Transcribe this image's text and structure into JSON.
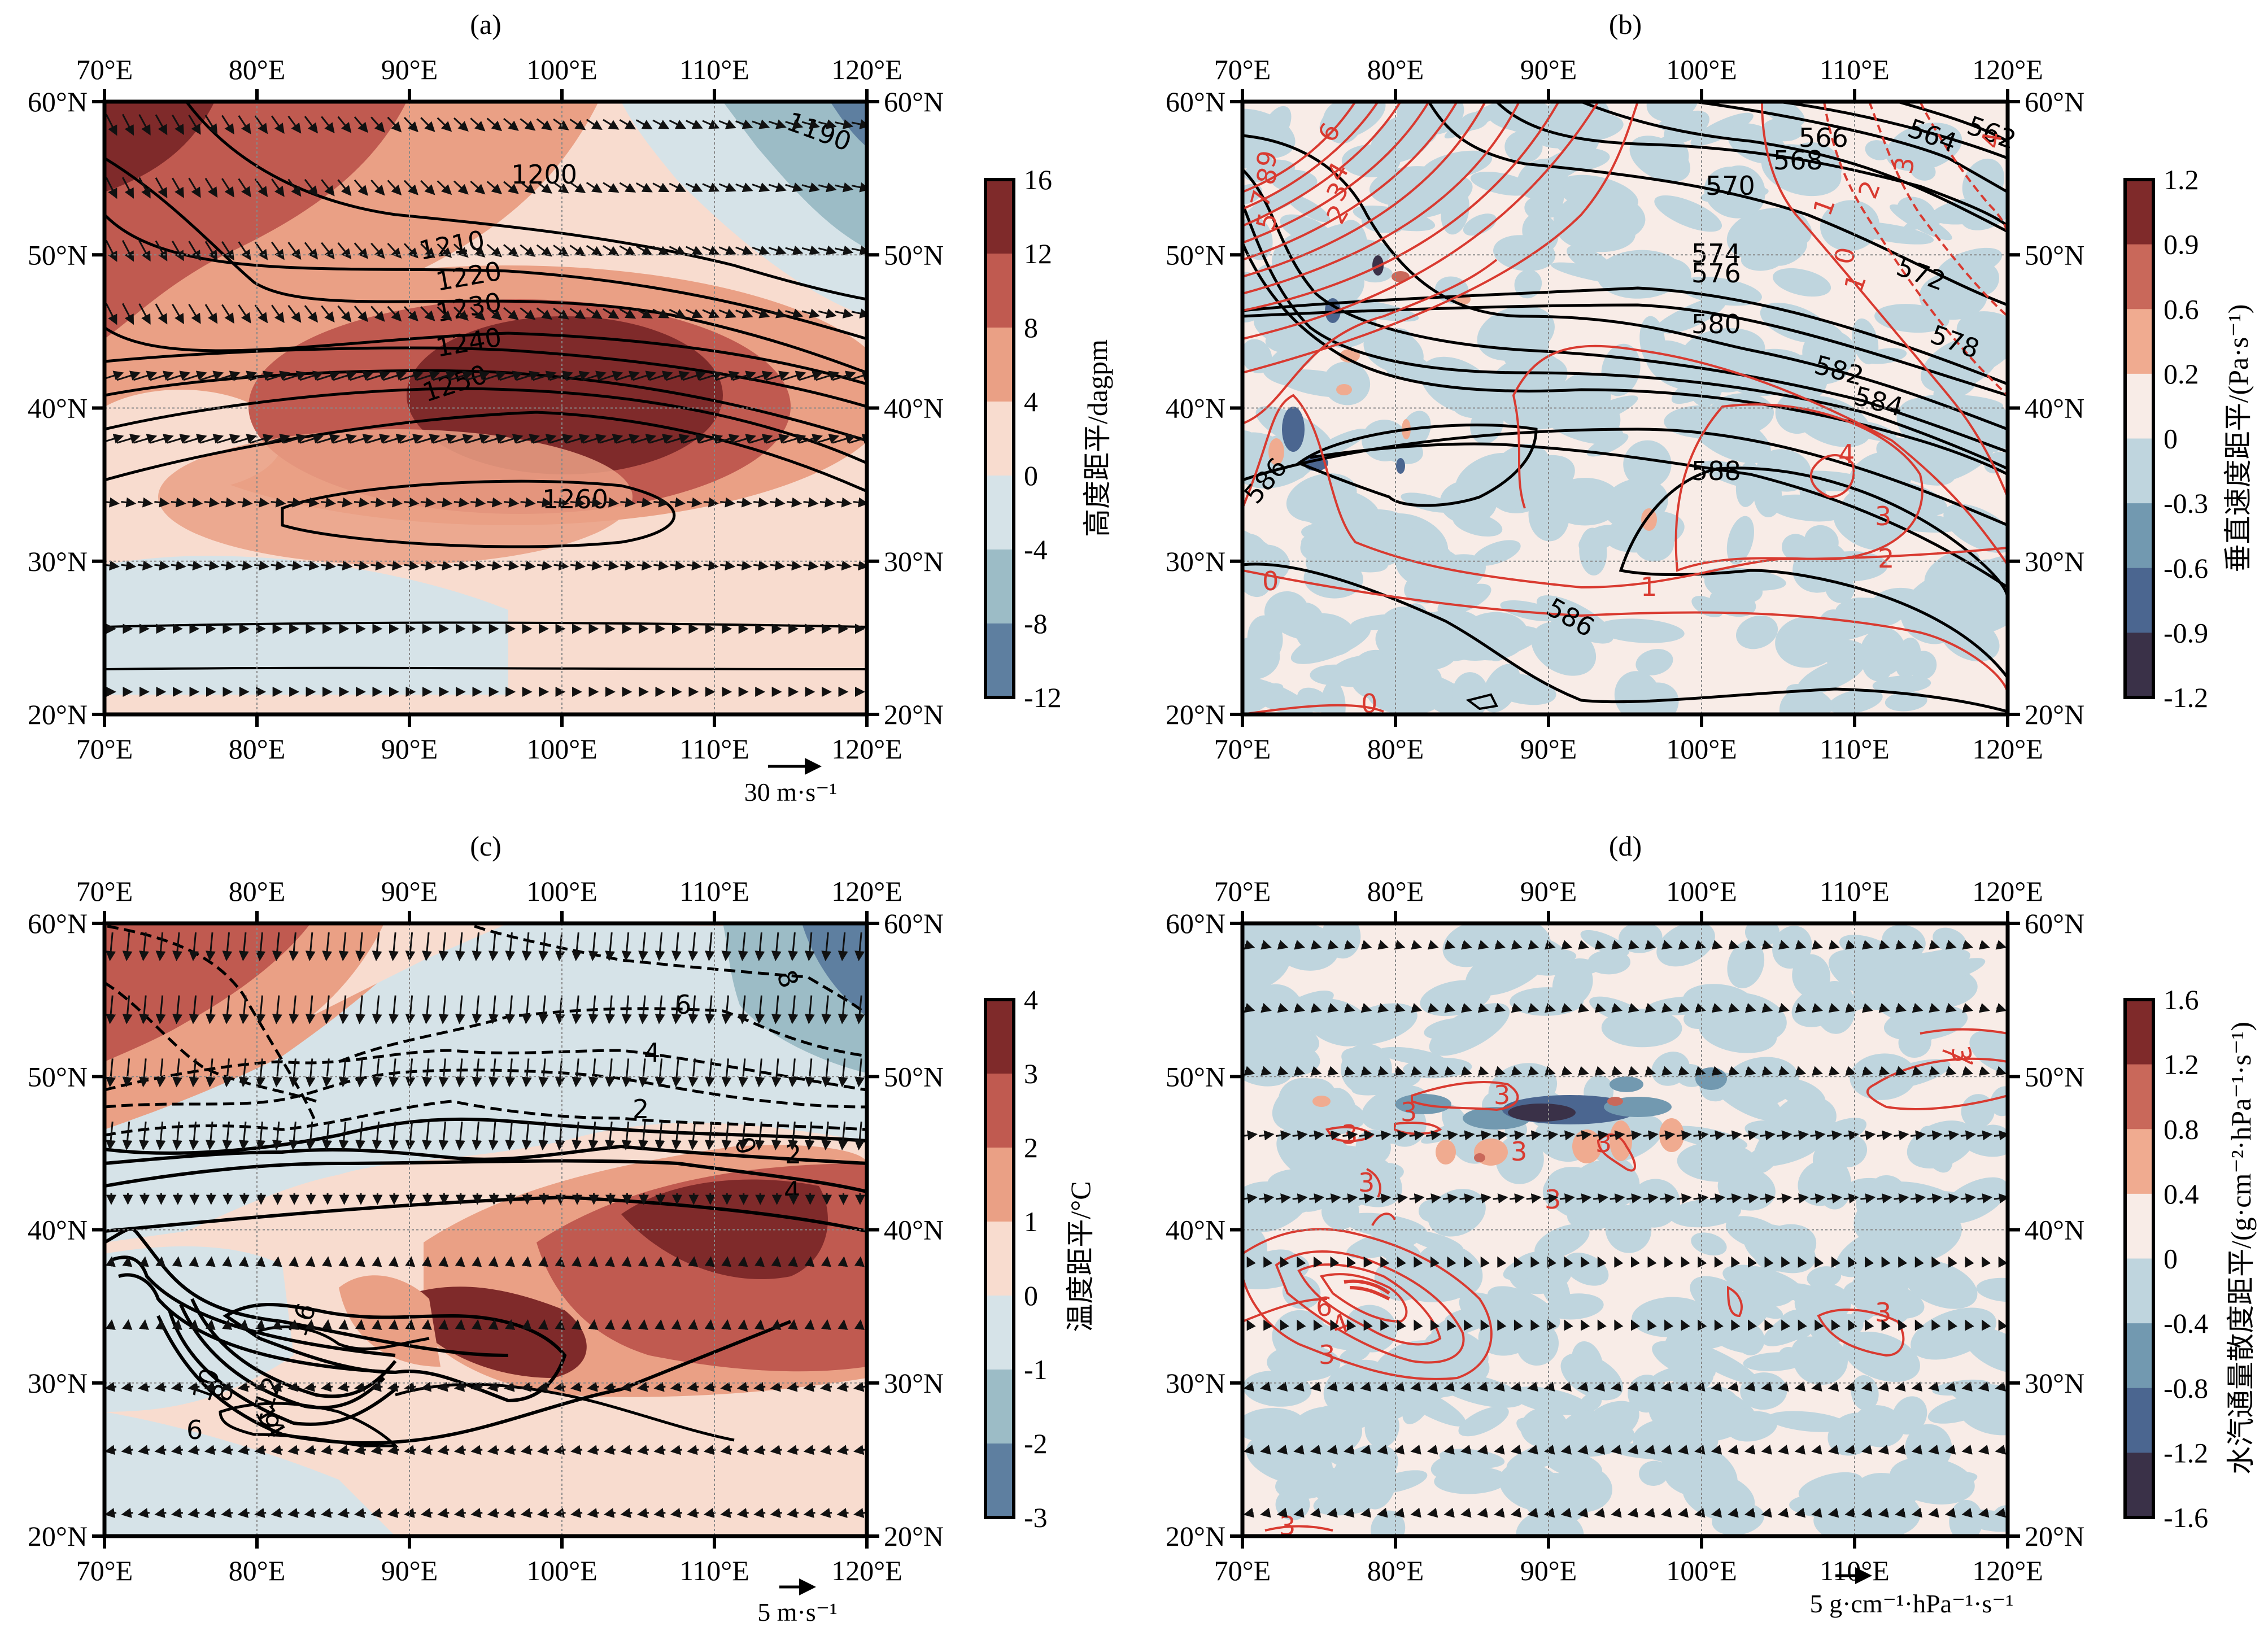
{
  "figure": {
    "lon_ticks": [
      "70°E",
      "80°E",
      "90°E",
      "100°E",
      "110°E",
      "120°E"
    ],
    "lat_ticks": [
      "60°N",
      "50°N",
      "40°N",
      "30°N",
      "20°N"
    ]
  },
  "chart_data": [
    {
      "type": "heatmap",
      "panel": "(a)",
      "title": "(a)",
      "xlim": [
        70,
        120
      ],
      "ylim": [
        20,
        60
      ],
      "x_tick_values": [
        70,
        80,
        90,
        100,
        110,
        120
      ],
      "y_tick_values": [
        60,
        50,
        40,
        30,
        20
      ],
      "grid": true,
      "colorbar": {
        "label": "高度距平/dagpm",
        "levels": [
          "16",
          "12",
          "8",
          "4",
          "0",
          "-4",
          "-8",
          "-12"
        ],
        "colors": [
          "#7f2a2a",
          "#c05a50",
          "#eaa085",
          "#f8dccf",
          "#d6e3e8",
          "#9cbcc6",
          "#5e7fa0"
        ]
      },
      "contours": {
        "color": "#000000",
        "labels": [
          "1190",
          "1200",
          "1210",
          "1220",
          "1230",
          "1240",
          "1250",
          "1260"
        ]
      },
      "vector_reference": {
        "value": 30,
        "label": "30 m·s⁻¹"
      }
    },
    {
      "type": "heatmap",
      "panel": "(b)",
      "title": "(b)",
      "xlim": [
        70,
        120
      ],
      "ylim": [
        20,
        60
      ],
      "x_tick_values": [
        70,
        80,
        90,
        100,
        110,
        120
      ],
      "y_tick_values": [
        60,
        50,
        40,
        30,
        20
      ],
      "grid": true,
      "colorbar": {
        "label": "垂直速度距平/(Pa·s⁻¹)",
        "levels": [
          "1.2",
          "0.9",
          "0.6",
          "0.2",
          "0",
          "-0.3",
          "-0.6",
          "-0.9",
          "-1.2"
        ],
        "colors": [
          "#7f2a2a",
          "#c9685a",
          "#f0ab90",
          "#f8ece7",
          "#bfd5de",
          "#7299b0",
          "#4b6690",
          "#3a3148"
        ]
      },
      "contours_black": {
        "color": "#000000",
        "labels": [
          "562",
          "564",
          "566",
          "568",
          "570",
          "572",
          "574",
          "576",
          "578",
          "580",
          "582",
          "584",
          "586",
          "588",
          "586"
        ]
      },
      "contours_red": {
        "color": "#d93a30",
        "labels": [
          "9",
          "8",
          "7",
          "6",
          "5",
          "4",
          "3",
          "2",
          "1",
          "0",
          "1",
          "2",
          "3",
          "4",
          "0",
          "1",
          "2",
          "3",
          "4",
          "0"
        ]
      }
    },
    {
      "type": "heatmap",
      "panel": "(c)",
      "title": "(c)",
      "xlim": [
        70,
        120
      ],
      "ylim": [
        20,
        60
      ],
      "x_tick_values": [
        70,
        80,
        90,
        100,
        110,
        120
      ],
      "y_tick_values": [
        60,
        50,
        40,
        30,
        20
      ],
      "grid": true,
      "colorbar": {
        "label": "温度距平/°C",
        "levels": [
          "4",
          "3",
          "2",
          "1",
          "0",
          "-1",
          "-2",
          "-3"
        ],
        "colors": [
          "#7f2a2a",
          "#c05a50",
          "#eaa085",
          "#f8dccf",
          "#d6e3e8",
          "#9cbcc6",
          "#5e7fa0"
        ]
      },
      "contours": {
        "color": "#000000",
        "labels": [
          "8",
          "6",
          "4",
          "2",
          "0",
          "2",
          "4",
          "16",
          "14",
          "12",
          "10",
          "8",
          "6",
          "6"
        ]
      },
      "vector_reference": {
        "value": 5,
        "label": "5 m·s⁻¹"
      }
    },
    {
      "type": "heatmap",
      "panel": "(d)",
      "title": "(d)",
      "xlim": [
        70,
        120
      ],
      "ylim": [
        20,
        60
      ],
      "x_tick_values": [
        70,
        80,
        90,
        100,
        110,
        120
      ],
      "y_tick_values": [
        60,
        50,
        40,
        30,
        20
      ],
      "grid": true,
      "colorbar": {
        "label": "水汽通量散度距平/(g·cm⁻²·hPa⁻¹·s⁻¹)",
        "levels": [
          "1.6",
          "1.2",
          "0.8",
          "0.4",
          "0",
          "-0.4",
          "-0.8",
          "-1.2",
          "-1.6"
        ],
        "colors": [
          "#7f2a2a",
          "#c9685a",
          "#f0ab90",
          "#f8ece7",
          "#bfd5de",
          "#7299b0",
          "#4b6690",
          "#3a3148"
        ]
      },
      "contours_red": {
        "color": "#d93a30",
        "labels": [
          "3",
          "3",
          "3",
          "3",
          "3",
          "3",
          "3",
          "3",
          "6",
          "4",
          "3",
          "3",
          "3"
        ]
      },
      "vector_reference": {
        "value": 5,
        "label": "5 g·cm⁻¹·hPa⁻¹·s⁻¹"
      }
    }
  ]
}
